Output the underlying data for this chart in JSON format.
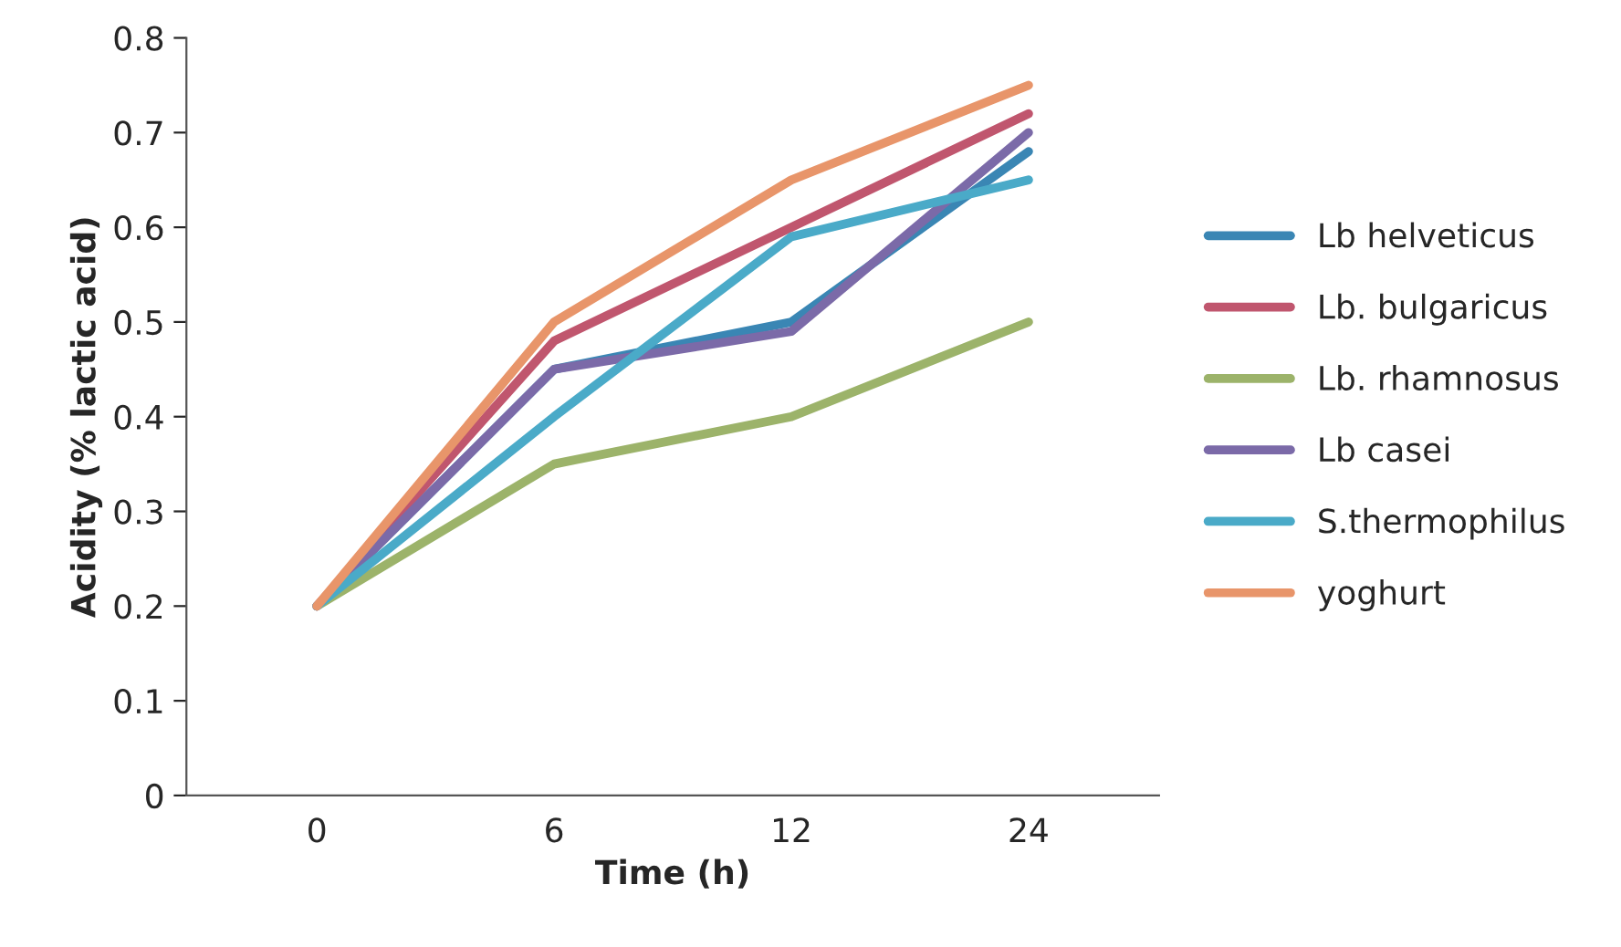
{
  "chart_data": {
    "type": "line",
    "xlabel": "Time (h)",
    "ylabel": "Acidity (% lactic acid)",
    "categories": [
      "0",
      "6",
      "12",
      "24"
    ],
    "series": [
      {
        "name": "Lb helveticus",
        "color": "#3a86b4",
        "values": [
          0.2,
          0.45,
          0.5,
          0.68
        ]
      },
      {
        "name": "Lb. bulgaricus",
        "color": "#c0566e",
        "values": [
          0.2,
          0.48,
          0.6,
          0.72
        ]
      },
      {
        "name": "Lb. rhamnosus",
        "color": "#9cb36a",
        "values": [
          0.2,
          0.35,
          0.4,
          0.5
        ]
      },
      {
        "name": "Lb casei",
        "color": "#7b6aa8",
        "values": [
          0.2,
          0.45,
          0.49,
          0.7
        ]
      },
      {
        "name": "S.thermophilus",
        "color": "#4aaac8",
        "values": [
          0.2,
          0.4,
          0.59,
          0.65
        ]
      },
      {
        "name": "yoghurt",
        "color": "#e8956a",
        "values": [
          0.2,
          0.5,
          0.65,
          0.75
        ]
      }
    ],
    "ylim": [
      0,
      0.8
    ],
    "yticks": [
      0,
      0.1,
      0.2,
      0.3,
      0.4,
      0.5,
      0.6,
      0.7,
      0.8
    ],
    "grid": false,
    "legend": "right",
    "marker": "none",
    "line_style": "solid"
  }
}
